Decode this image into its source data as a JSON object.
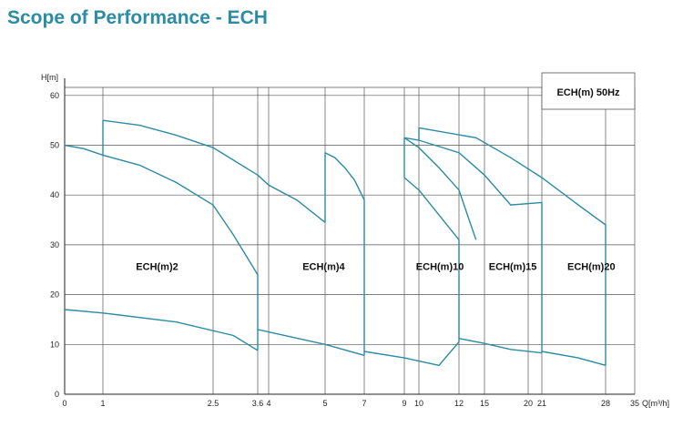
{
  "page": {
    "title": "Scope of Performance - ECH"
  },
  "chart_data": {
    "type": "line",
    "title": "",
    "xlabel": "Q[m³/h]",
    "ylabel": "H[m]",
    "xlim": [
      0,
      35
    ],
    "ylim": [
      0,
      65
    ],
    "x_ticks": [
      {
        "v": 0,
        "label": "0"
      },
      {
        "v": 1,
        "label": "1"
      },
      {
        "v": 2.5,
        "label": "2.5"
      },
      {
        "v": 3.6,
        "label": "3.6"
      },
      {
        "v": 4,
        "label": "4"
      },
      {
        "v": 5,
        "label": "5"
      },
      {
        "v": 7,
        "label": "7"
      },
      {
        "v": 9,
        "label": "9"
      },
      {
        "v": 10,
        "label": "10"
      },
      {
        "v": 12,
        "label": "12"
      },
      {
        "v": 15,
        "label": "15"
      },
      {
        "v": 20,
        "label": "20"
      },
      {
        "v": 21,
        "label": "21"
      },
      {
        "v": 28,
        "label": "28"
      },
      {
        "v": 35,
        "label": "35"
      }
    ],
    "y_ticks": [
      0,
      10,
      20,
      30,
      40,
      50,
      60
    ],
    "grid": true,
    "legend_box": "ECH(m)  50Hz",
    "series": [
      {
        "name": "ECH(m)2",
        "top": [
          [
            1,
            55
          ],
          [
            1.5,
            54
          ],
          [
            2,
            52
          ],
          [
            2.5,
            49.5
          ],
          [
            3,
            47
          ],
          [
            3.6,
            44
          ]
        ],
        "mid": [
          [
            0,
            50
          ],
          [
            0.5,
            49.3
          ],
          [
            1,
            48
          ],
          [
            1.5,
            46
          ],
          [
            2,
            42.5
          ],
          [
            2.5,
            38
          ],
          [
            3,
            32
          ],
          [
            3.6,
            24
          ]
        ],
        "bottom": [
          [
            0,
            17
          ],
          [
            1,
            16.3
          ],
          [
            2,
            14.5
          ],
          [
            3,
            11.8
          ],
          [
            3.6,
            8.8
          ]
        ]
      },
      {
        "name": "ECH(m)4",
        "top": [
          [
            3.6,
            44
          ],
          [
            4,
            42
          ],
          [
            4.5,
            39
          ],
          [
            5,
            34.5
          ]
        ],
        "mid": [
          [
            5,
            48.5
          ],
          [
            5.5,
            47.5
          ],
          [
            6,
            45.5
          ],
          [
            6.5,
            43
          ],
          [
            7,
            39
          ],
          [
            7,
            26
          ]
        ],
        "bottom": [
          [
            3.6,
            13
          ],
          [
            5,
            10
          ],
          [
            7,
            7.8
          ]
        ]
      },
      {
        "name": "ECH(m)10",
        "top": [
          [
            9,
            51.5
          ],
          [
            10,
            49.5
          ],
          [
            11,
            45.5
          ],
          [
            12,
            41
          ],
          [
            13,
            36
          ],
          [
            14,
            31
          ]
        ],
        "mid": [
          [
            9,
            43.5
          ],
          [
            10,
            41
          ],
          [
            11,
            36
          ],
          [
            12,
            31
          ]
        ],
        "bottom": [
          [
            7,
            8.6
          ],
          [
            9,
            7.3
          ],
          [
            11,
            5.8
          ],
          [
            12,
            10.5
          ]
        ]
      },
      {
        "name": "ECH(m)15",
        "top": [
          [
            9,
            51.5
          ],
          [
            10,
            51
          ],
          [
            12,
            48.5
          ],
          [
            15,
            44
          ],
          [
            18,
            38
          ],
          [
            21,
            38.5
          ]
        ],
        "mid": [],
        "bottom": [
          [
            12,
            11.2
          ],
          [
            15,
            10.2
          ],
          [
            18,
            9
          ],
          [
            21,
            8.3
          ]
        ]
      },
      {
        "name": "ECH(m)20",
        "top": [
          [
            10,
            53.5
          ],
          [
            14,
            51.5
          ],
          [
            18,
            47.5
          ],
          [
            21,
            43.5
          ],
          [
            25,
            38
          ],
          [
            28,
            34
          ]
        ],
        "mid": [],
        "bottom": [
          [
            21,
            8.6
          ],
          [
            25,
            7.3
          ],
          [
            28,
            5.8
          ]
        ]
      }
    ],
    "region_labels": [
      {
        "x": 1.45,
        "y": 25,
        "text": "ECH(m)2"
      },
      {
        "x": 4.6,
        "y": 25,
        "text": "ECH(m)4"
      },
      {
        "x": 9.8,
        "y": 25,
        "text": "ECH(m)10"
      },
      {
        "x": 15.5,
        "y": 25,
        "text": "ECH(m)15"
      },
      {
        "x": 23.8,
        "y": 25,
        "text": "ECH(m)20"
      }
    ]
  }
}
